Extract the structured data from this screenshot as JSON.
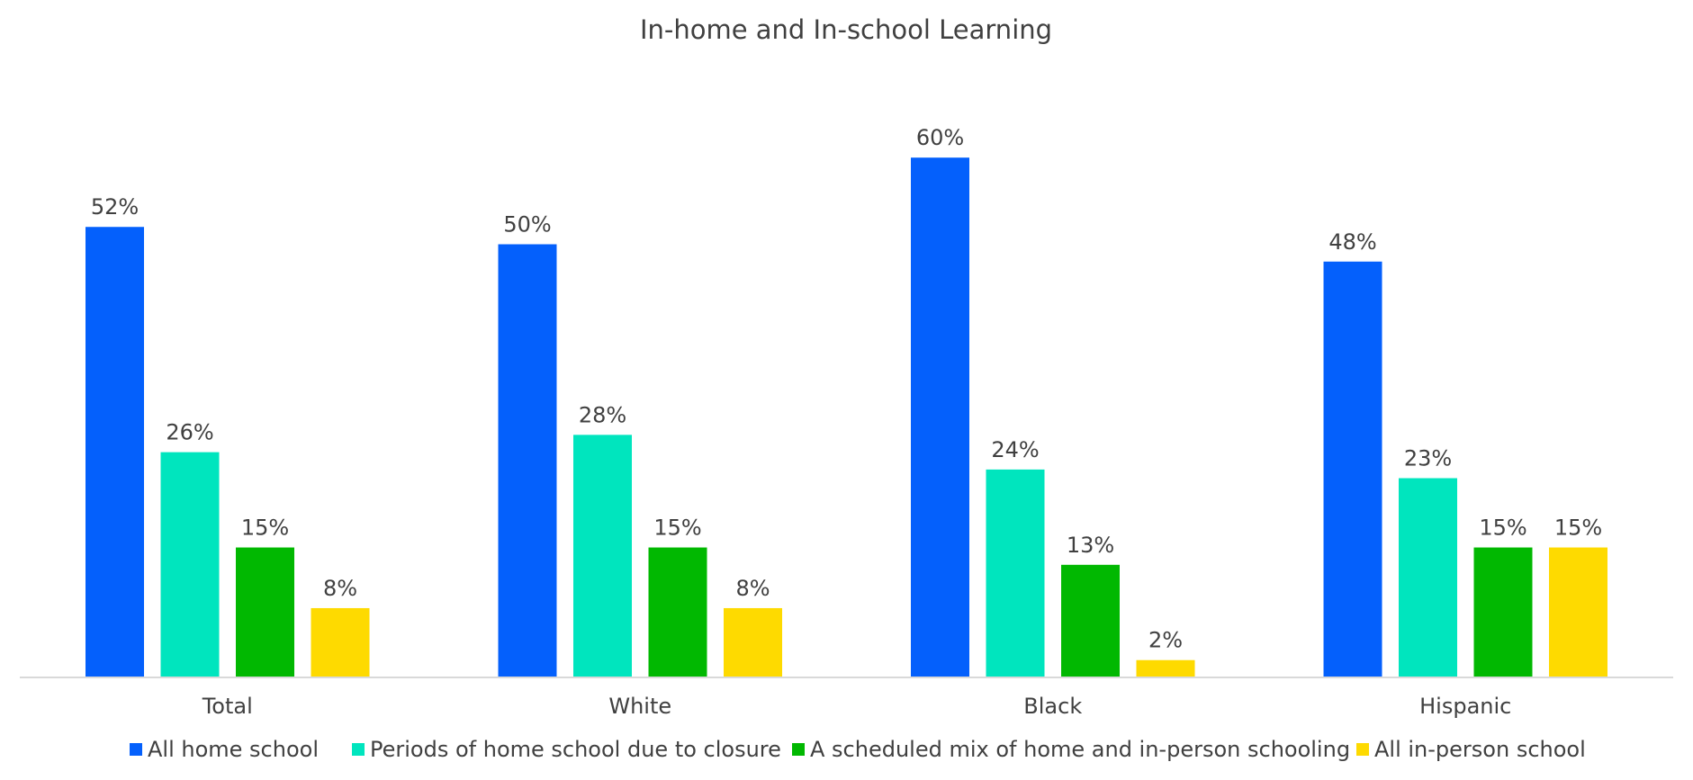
{
  "chart_data": {
    "type": "bar",
    "title": "In-home and In-school Learning",
    "xlabel": "",
    "ylabel": "",
    "categories": [
      "Total",
      "White",
      "Black",
      "Hispanic"
    ],
    "series": [
      {
        "name": "All home school",
        "color": "#0460FC",
        "values": [
          52,
          50,
          60,
          48
        ],
        "labels": [
          "52%",
          "50%",
          "60%",
          "48%"
        ]
      },
      {
        "name": "Periods of home school due to closure",
        "color": "#00E5BE",
        "values": [
          26,
          28,
          24,
          23
        ],
        "labels": [
          "26%",
          "28%",
          "24%",
          "23%"
        ]
      },
      {
        "name": "A scheduled mix of home and in-person schooling",
        "color": "#01B801",
        "values": [
          15,
          15,
          13,
          15
        ],
        "labels": [
          "15%",
          "15%",
          "13%",
          "15%"
        ]
      },
      {
        "name": "All in-person school",
        "color": "#FEDA00",
        "values": [
          8,
          8,
          2,
          15
        ],
        "labels": [
          "8%",
          "8%",
          "2%",
          "15%"
        ]
      }
    ],
    "ylim": [
      0,
      60
    ],
    "grid": false,
    "legend_position": "bottom",
    "axis_line_color": "#D9D9D9"
  }
}
